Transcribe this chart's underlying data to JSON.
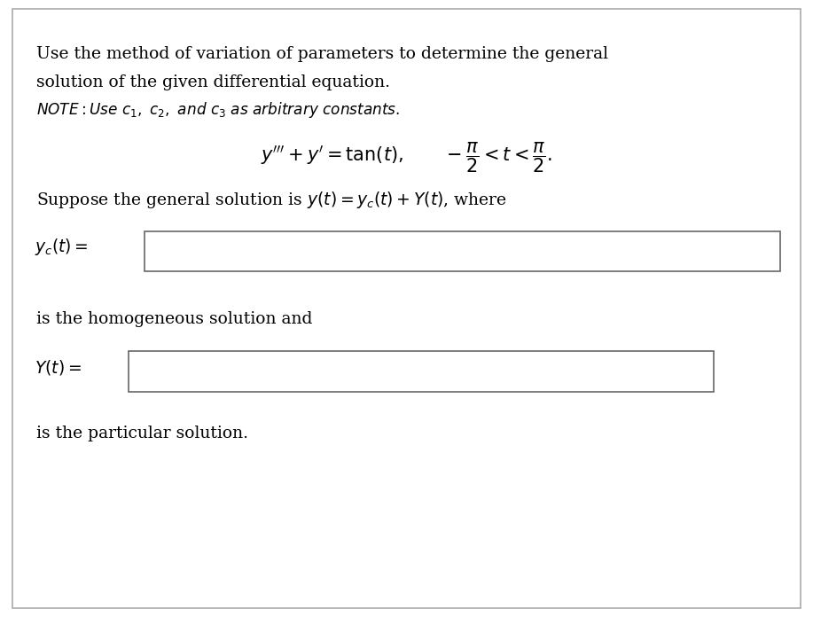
{
  "bg_color": "#ffffff",
  "border_color": "#aaaaaa",
  "text_color": "#000000",
  "fig_width": 9.17,
  "fig_height": 6.96,
  "line1": "Use the method of variation of parameters to determine the general",
  "line2": "solution of the given differential equation.",
  "note_line": "NOTE: Use $c_1$, $c_2$, and $c_3$ as arbitrary constants.",
  "suppose_line": "Suppose the general solution is $y(t) = y_c(t) + Y(t)$, where",
  "text_homogeneous": "is the homogeneous solution and",
  "text_particular": "is the particular solution."
}
